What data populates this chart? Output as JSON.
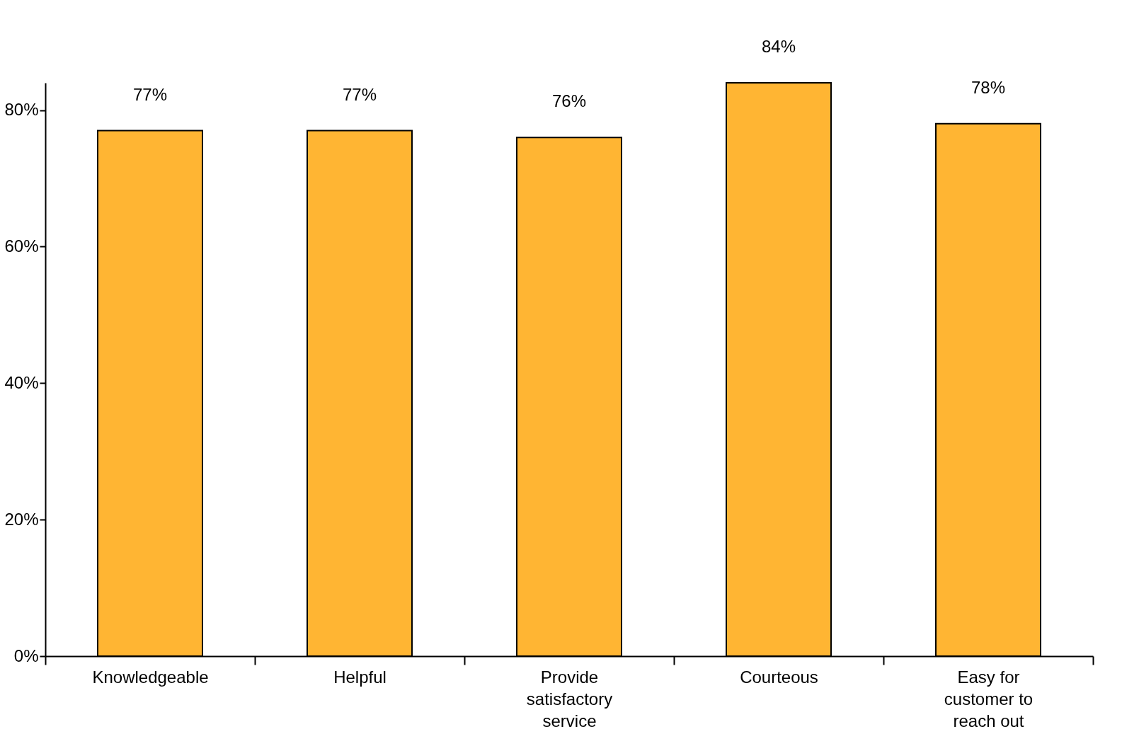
{
  "chart_data": {
    "type": "bar",
    "categories": [
      "Knowledgeable",
      "Helpful",
      "Provide satisfactory service",
      "Courteous",
      "Easy for customer to reach out"
    ],
    "values": [
      77,
      77,
      76,
      84,
      78
    ],
    "value_labels": [
      "77%",
      "77%",
      "76%",
      "84%",
      "78%"
    ],
    "color": "#ffb533",
    "ylim": [
      0,
      84
    ],
    "yticks": [
      {
        "value": 0,
        "label": "0%"
      },
      {
        "value": 20,
        "label": "20%"
      },
      {
        "value": 40,
        "label": "40%"
      },
      {
        "value": 60,
        "label": "60%"
      },
      {
        "value": 80,
        "label": "80%"
      }
    ],
    "grid": false
  }
}
